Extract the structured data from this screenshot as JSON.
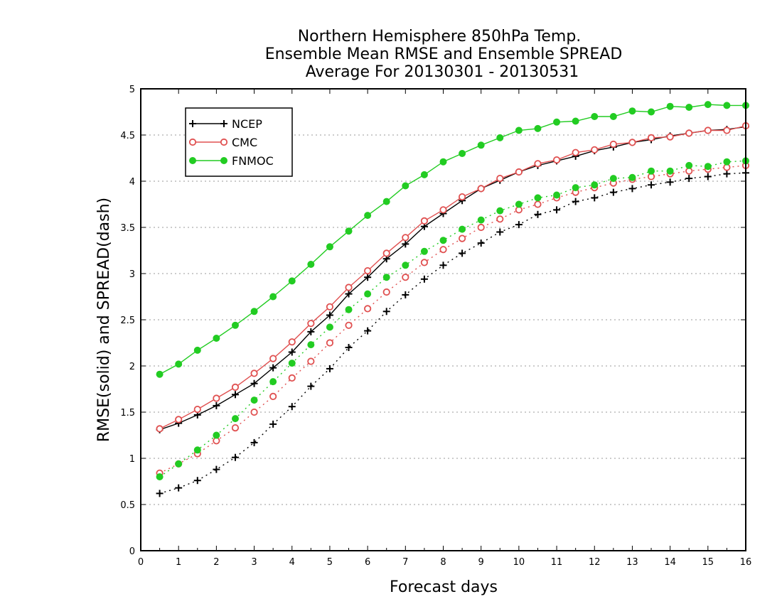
{
  "chart_data": {
    "type": "line",
    "title": [
      "Northern Hemisphere 850hPa Temp.",
      "Ensemble Mean RMSE and Ensemble SPREAD",
      "Average For 20130301 - 20130531"
    ],
    "xlabel": "Forecast days",
    "ylabel": "RMSE(solid) and SPREAD(dash)",
    "xlim": [
      0,
      16
    ],
    "ylim": [
      0,
      5
    ],
    "xticks": [
      "0",
      "1",
      "2",
      "3",
      "4",
      "5",
      "6",
      "7",
      "8",
      "9",
      "10",
      "11",
      "12",
      "13",
      "14",
      "15",
      "16"
    ],
    "yticks": [
      "0",
      "0.5",
      "1",
      "1.5",
      "2",
      "2.5",
      "3",
      "3.5",
      "4",
      "4.5",
      "5"
    ],
    "grid": "horizontal dotted",
    "legend": "top-left",
    "x": [
      0.5,
      1,
      1.5,
      2,
      2.5,
      3,
      3.5,
      4,
      4.5,
      5,
      5.5,
      6,
      6.5,
      7,
      7.5,
      8,
      8.5,
      9,
      9.5,
      10,
      10.5,
      11,
      11.5,
      12,
      12.5,
      13,
      13.5,
      14,
      14.5,
      15,
      15.5,
      16
    ],
    "series": [
      {
        "name": "NCEP",
        "color": "#000000",
        "marker": "plus",
        "style": "solid",
        "values": [
          1.31,
          1.38,
          1.47,
          1.57,
          1.69,
          1.81,
          1.98,
          2.15,
          2.37,
          2.55,
          2.78,
          2.96,
          3.16,
          3.32,
          3.51,
          3.65,
          3.79,
          3.92,
          4.01,
          4.1,
          4.17,
          4.22,
          4.27,
          4.33,
          4.37,
          4.42,
          4.45,
          4.49,
          4.52,
          4.55,
          4.56,
          4.59
        ]
      },
      {
        "name": "CMC",
        "color": "#e05050",
        "marker": "open-circle",
        "style": "solid",
        "values": [
          1.32,
          1.42,
          1.53,
          1.65,
          1.77,
          1.92,
          2.08,
          2.26,
          2.46,
          2.64,
          2.85,
          3.03,
          3.22,
          3.39,
          3.57,
          3.69,
          3.83,
          3.92,
          4.03,
          4.1,
          4.19,
          4.23,
          4.31,
          4.34,
          4.4,
          4.42,
          4.47,
          4.48,
          4.52,
          4.55,
          4.55,
          4.6
        ]
      },
      {
        "name": "FNMOC",
        "color": "#22cc22",
        "marker": "filled-circle",
        "style": "solid",
        "values": [
          1.91,
          2.02,
          2.17,
          2.3,
          2.44,
          2.59,
          2.75,
          2.92,
          3.1,
          3.29,
          3.46,
          3.63,
          3.78,
          3.95,
          4.07,
          4.21,
          4.3,
          4.39,
          4.47,
          4.55,
          4.57,
          4.64,
          4.65,
          4.7,
          4.7,
          4.76,
          4.75,
          4.81,
          4.8,
          4.83,
          4.82,
          4.82
        ]
      },
      {
        "name": "NCEP spread",
        "color": "#000000",
        "marker": "plus",
        "style": "dash",
        "values": [
          0.62,
          0.68,
          0.76,
          0.88,
          1.01,
          1.17,
          1.37,
          1.56,
          1.78,
          1.97,
          2.2,
          2.38,
          2.59,
          2.77,
          2.94,
          3.09,
          3.22,
          3.33,
          3.45,
          3.53,
          3.64,
          3.69,
          3.78,
          3.82,
          3.88,
          3.92,
          3.96,
          3.99,
          4.03,
          4.05,
          4.08,
          4.09
        ]
      },
      {
        "name": "CMC spread",
        "color": "#e05050",
        "marker": "open-circle",
        "style": "dash",
        "values": [
          0.84,
          0.94,
          1.05,
          1.19,
          1.33,
          1.5,
          1.67,
          1.87,
          2.05,
          2.25,
          2.44,
          2.62,
          2.8,
          2.96,
          3.12,
          3.26,
          3.38,
          3.5,
          3.59,
          3.69,
          3.75,
          3.82,
          3.88,
          3.93,
          3.98,
          4.02,
          4.05,
          4.08,
          4.11,
          4.13,
          4.15,
          4.17
        ]
      },
      {
        "name": "FNMOC spread",
        "color": "#22cc22",
        "marker": "filled-circle",
        "style": "dash",
        "values": [
          0.8,
          0.94,
          1.09,
          1.25,
          1.43,
          1.63,
          1.83,
          2.03,
          2.23,
          2.42,
          2.61,
          2.78,
          2.96,
          3.09,
          3.24,
          3.36,
          3.48,
          3.58,
          3.68,
          3.75,
          3.82,
          3.85,
          3.93,
          3.96,
          4.03,
          4.04,
          4.11,
          4.11,
          4.17,
          4.16,
          4.21,
          4.22
        ]
      }
    ],
    "legend_entries": [
      {
        "name": "NCEP",
        "color": "#000000",
        "marker": "plus"
      },
      {
        "name": "CMC",
        "color": "#e05050",
        "marker": "open-circle"
      },
      {
        "name": "FNMOC",
        "color": "#22cc22",
        "marker": "filled-circle"
      }
    ]
  }
}
